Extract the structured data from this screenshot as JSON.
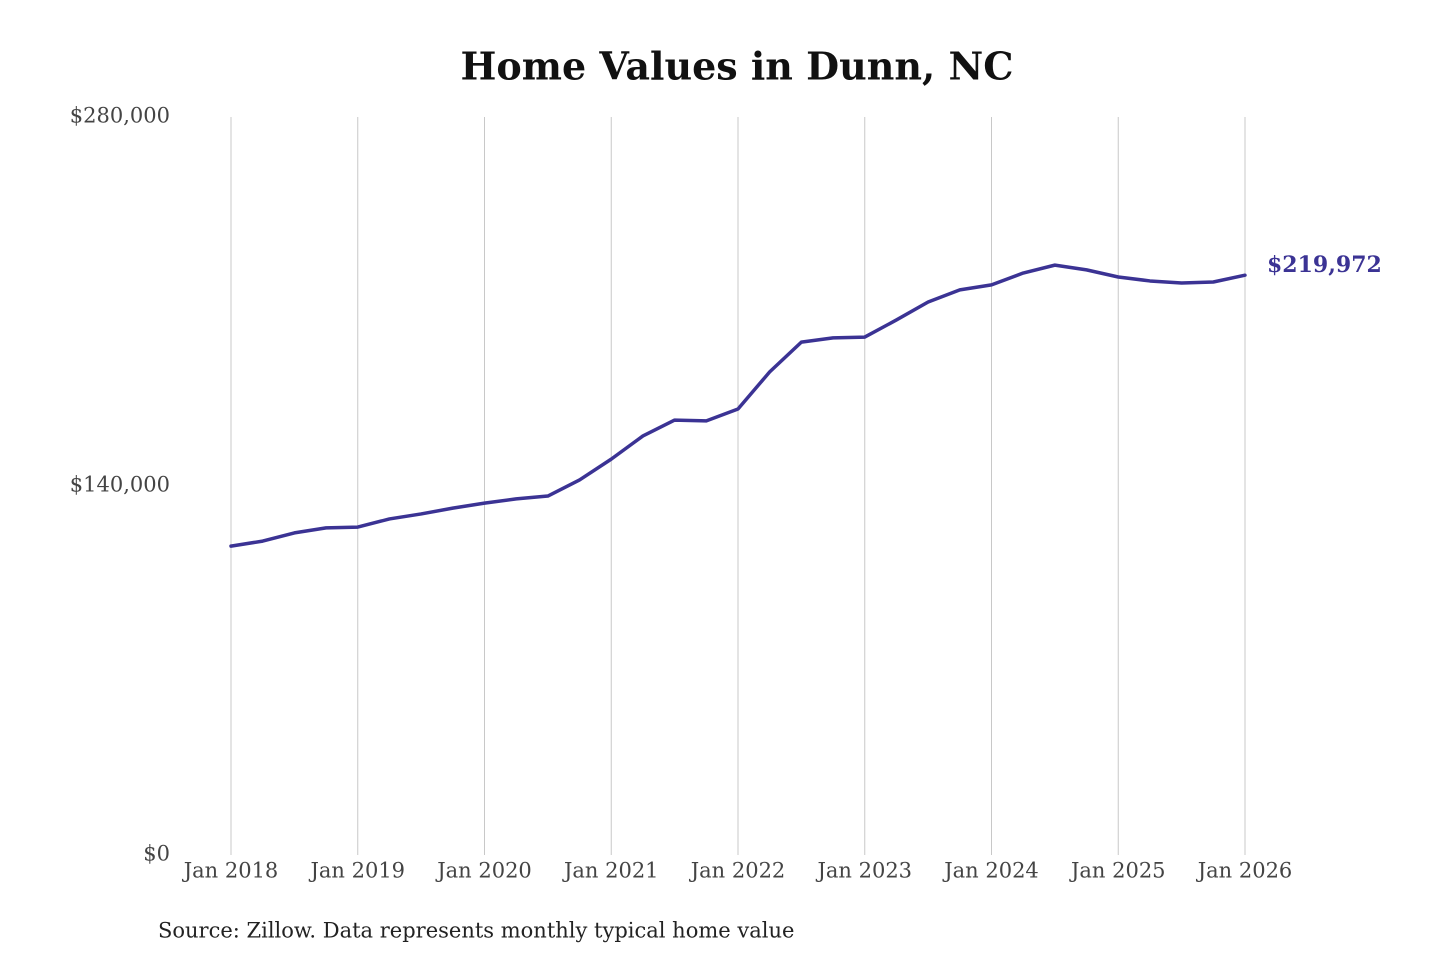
{
  "chart_data": {
    "type": "line",
    "title": "Home Values in Dunn, NC",
    "source": "Source: Zillow. Data represents monthly typical home value",
    "x": [
      2018,
      2018.25,
      2018.5,
      2018.75,
      2019,
      2019.25,
      2019.5,
      2019.75,
      2020,
      2020.25,
      2020.5,
      2020.75,
      2021,
      2021.25,
      2021.5,
      2021.75,
      2022,
      2022.25,
      2022.5,
      2022.75,
      2023,
      2023.25,
      2023.5,
      2023.75,
      2024,
      2024.25,
      2024.5,
      2024.75,
      2025,
      2025.25,
      2025.5,
      2025.75,
      2026
    ],
    "series": [
      {
        "name": "Home value",
        "color": "#3b3394",
        "values": [
          117200,
          119100,
          122200,
          124100,
          124400,
          127500,
          129400,
          131600,
          133500,
          135100,
          136200,
          142300,
          150200,
          159000,
          165000,
          164700,
          169200,
          183300,
          194600,
          196200,
          196500,
          203000,
          209800,
          214400,
          216300,
          220800,
          223800,
          222000,
          219300,
          217800,
          217000,
          217400,
          219972
        ]
      }
    ],
    "last_value_label": "$219,972",
    "xlim": [
      2018,
      2026
    ],
    "xticks": [
      {
        "value": 2018,
        "label": "Jan 2018"
      },
      {
        "value": 2019,
        "label": "Jan 2019"
      },
      {
        "value": 2020,
        "label": "Jan 2020"
      },
      {
        "value": 2021,
        "label": "Jan 2021"
      },
      {
        "value": 2022,
        "label": "Jan 2022"
      },
      {
        "value": 2023,
        "label": "Jan 2023"
      },
      {
        "value": 2024,
        "label": "Jan 2024"
      },
      {
        "value": 2025,
        "label": "Jan 2025"
      },
      {
        "value": 2026,
        "label": "Jan 2026"
      }
    ],
    "ylim": [
      0,
      280000
    ],
    "yticks": [
      {
        "value": 0,
        "label": "$0"
      },
      {
        "value": 140000,
        "label": "$140,000"
      },
      {
        "value": 280000,
        "label": "$280,000"
      }
    ],
    "grid": "x"
  }
}
